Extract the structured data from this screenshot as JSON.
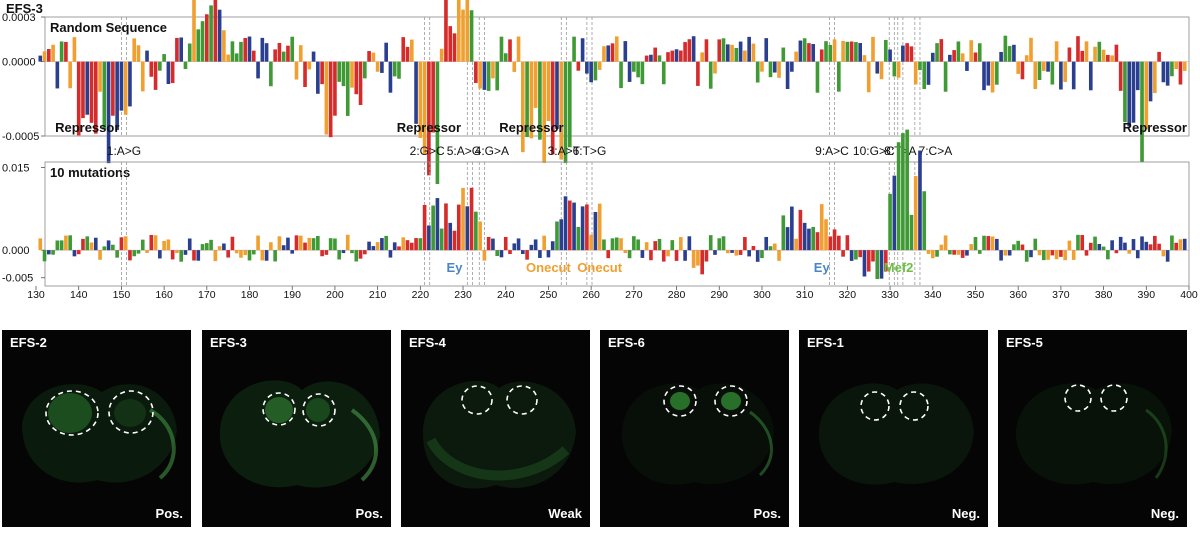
{
  "chart_data": {
    "type": "sequence-logo",
    "figure_label": "EFS-3",
    "x": {
      "range": [
        130,
        400
      ],
      "ticks": [
        130,
        140,
        150,
        160,
        170,
        180,
        190,
        200,
        210,
        220,
        230,
        240,
        250,
        260,
        270,
        280,
        290,
        300,
        310,
        320,
        330,
        340,
        350,
        360,
        370,
        380,
        390,
        400
      ]
    },
    "panels": [
      {
        "title": "Random Sequence",
        "ylim": [
          -0.0005,
          0.0003
        ],
        "yticks": [
          {
            "value": 0.0003,
            "label": "0.0003"
          },
          {
            "value": 0.0,
            "label": "0.0000"
          },
          {
            "value": -0.0005,
            "label": "-0.0005"
          }
        ],
        "annotations": [
          {
            "text": "Repressor",
            "x": 142
          },
          {
            "text": "Repressor",
            "x": 222
          },
          {
            "text": "Repressor",
            "x": 246
          },
          {
            "text": "Repressor",
            "x": 392
          }
        ]
      },
      {
        "title": "10 mutations",
        "ylim": [
          -0.0065,
          0.016
        ],
        "yticks": [
          {
            "value": 0.015,
            "label": "0.015"
          },
          {
            "value": 0.0,
            "label": "0.000"
          },
          {
            "value": -0.005,
            "label": "-0.005"
          }
        ],
        "annotations": [
          {
            "text": "Ey",
            "x": 228,
            "color": "#4a86c5"
          },
          {
            "text": "Onecut",
            "x": 250,
            "color": "#f0a030"
          },
          {
            "text": "Onecut",
            "x": 262,
            "color": "#f0a030"
          },
          {
            "text": "Ey",
            "x": 314,
            "color": "#4a86c5"
          },
          {
            "text": "Mef2",
            "x": 332,
            "color": "#6cbf45"
          }
        ]
      }
    ],
    "mutations": [
      {
        "label": "1:A>G",
        "x": 150.6
      },
      {
        "label": "2:G>C",
        "x": 221.6
      },
      {
        "label": "5:A>G",
        "x": 231.6
      },
      {
        "label": "4:G>A",
        "x": 234.4
      },
      {
        "label": "3:A>T",
        "x": 253.6
      },
      {
        "label": "6:T>G",
        "x": 259.6
      },
      {
        "label": "9:A>C",
        "x": 316.4
      },
      {
        "label": "10:G>C",
        "x": 330.4
      },
      {
        "label": "8:T>A",
        "x": 332.4
      },
      {
        "label": "7:C>A",
        "x": 336.4
      }
    ],
    "base_colors": {
      "A": "#3f9a35",
      "C": "#2a3f8f",
      "G": "#f0a030",
      "T": "#d52b2b"
    }
  },
  "panels": [
    {
      "name": "EFS-2",
      "status": "Pos."
    },
    {
      "name": "EFS-3",
      "status": "Pos."
    },
    {
      "name": "EFS-4",
      "status": "Weak"
    },
    {
      "name": "EFS-6",
      "status": "Pos."
    },
    {
      "name": "EFS-1",
      "status": "Neg."
    },
    {
      "name": "EFS-5",
      "status": "Neg."
    }
  ]
}
